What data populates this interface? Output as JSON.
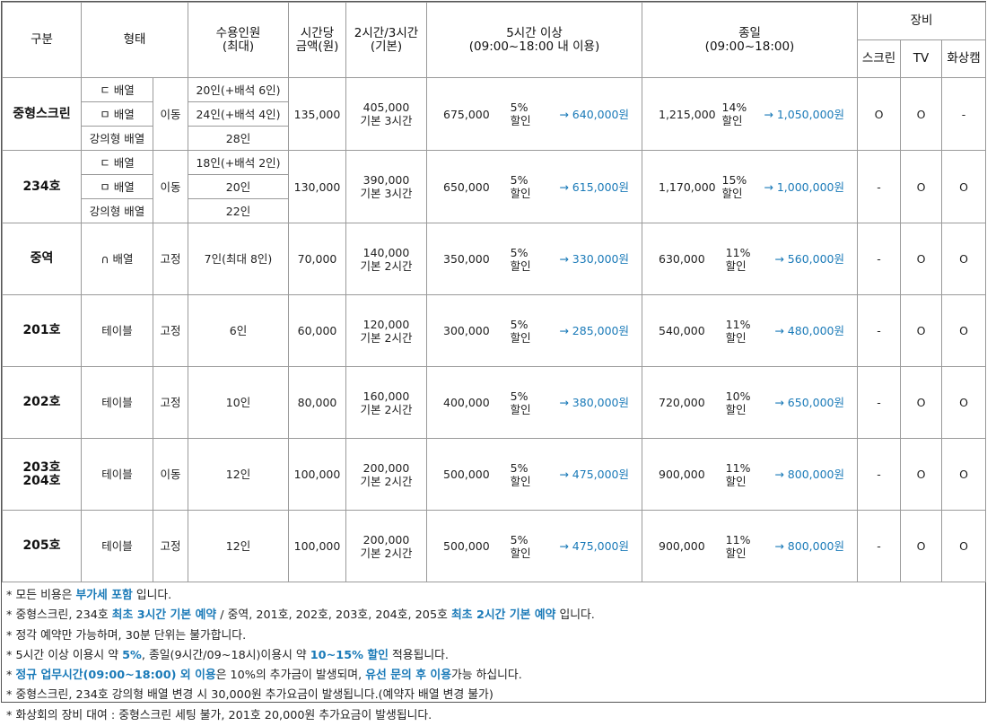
{
  "headers": {
    "category": "구분",
    "type": "형태",
    "capacity": "수용인원\n(최대)",
    "hourly": "시간당\n금액(원)",
    "base": "2시간/3시간\n(기본)",
    "five_hour": "5시간 이상\n(09:00~18:00 내 이용)",
    "full_day": "종일\n(09:00~18:00)",
    "equipment": "장비",
    "screen": "스크린",
    "tv": "TV",
    "camera": "화상캠"
  },
  "rooms": [
    {
      "name": "중형스크린",
      "mode": "이동",
      "layouts": [
        {
          "layout": "ㄷ 배열",
          "capacity": "20인(+배석 6인)"
        },
        {
          "layout": "ㅁ 배열",
          "capacity": "24인(+배석 4인)"
        },
        {
          "layout": "강의형 배열",
          "capacity": "28인"
        }
      ],
      "hourly": "135,000",
      "base": "405,000\n기본 3시간",
      "five_orig": "675,000",
      "five_rate": "5%\n할인",
      "five_final": "→ 640,000원",
      "day_orig": "1,215,000",
      "day_rate": "14%\n할인",
      "day_final": "→ 1,050,000원",
      "screen": "O",
      "tv": "O",
      "camera": "-"
    },
    {
      "name": "234호",
      "mode": "이동",
      "layouts": [
        {
          "layout": "ㄷ 배열",
          "capacity": "18인(+배석 2인)"
        },
        {
          "layout": "ㅁ 배열",
          "capacity": "20인"
        },
        {
          "layout": "강의형 배열",
          "capacity": "22인"
        }
      ],
      "hourly": "130,000",
      "base": "390,000\n기본 3시간",
      "five_orig": "650,000",
      "five_rate": "5%\n할인",
      "five_final": "→ 615,000원",
      "day_orig": "1,170,000",
      "day_rate": "15%\n할인",
      "day_final": "→ 1,000,000원",
      "screen": "-",
      "tv": "O",
      "camera": "O"
    }
  ],
  "simple_rooms": [
    {
      "name": "중역",
      "layout": "∩ 배열",
      "mode": "고정",
      "capacity": "7인(최대 8인)",
      "hourly": "70,000",
      "base": "140,000\n기본 2시간",
      "five_orig": "350,000",
      "five_rate": "5%\n할인",
      "five_final": "→ 330,000원",
      "day_orig": "630,000",
      "day_rate": "11%\n할인",
      "day_final": "→ 560,000원",
      "screen": "-",
      "tv": "O",
      "camera": "O"
    },
    {
      "name": "201호",
      "layout": "테이블",
      "mode": "고정",
      "capacity": "6인",
      "hourly": "60,000",
      "base": "120,000\n기본 2시간",
      "five_orig": "300,000",
      "five_rate": "5%\n할인",
      "five_final": "→ 285,000원",
      "day_orig": "540,000",
      "day_rate": "11%\n할인",
      "day_final": "→ 480,000원",
      "screen": "-",
      "tv": "O",
      "camera": "O"
    },
    {
      "name": "202호",
      "layout": "테이블",
      "mode": "고정",
      "capacity": "10인",
      "hourly": "80,000",
      "base": "160,000\n기본 2시간",
      "five_orig": "400,000",
      "five_rate": "5%\n할인",
      "five_final": "→ 380,000원",
      "day_orig": "720,000",
      "day_rate": "10%\n할인",
      "day_final": "→ 650,000원",
      "screen": "-",
      "tv": "O",
      "camera": "O"
    },
    {
      "name": "203호\n204호",
      "layout": "테이블",
      "mode": "이동",
      "capacity": "12인",
      "hourly": "100,000",
      "base": "200,000\n기본 2시간",
      "five_orig": "500,000",
      "five_rate": "5%\n할인",
      "five_final": "→ 475,000원",
      "day_orig": "900,000",
      "day_rate": "11%\n할인",
      "day_final": "→ 800,000원",
      "screen": "-",
      "tv": "O",
      "camera": "O"
    },
    {
      "name": "205호",
      "layout": "테이블",
      "mode": "고정",
      "capacity": "12인",
      "hourly": "100,000",
      "base": "200,000\n기본 2시간",
      "five_orig": "500,000",
      "five_rate": "5%\n할인",
      "five_final": "→ 475,000원",
      "day_orig": "900,000",
      "day_rate": "11%\n할인",
      "day_final": "→ 800,000원",
      "screen": "-",
      "tv": "O",
      "camera": "O"
    }
  ],
  "notes": {
    "n1_a": "* 모든 비용은 ",
    "n1_b": "부가세 포함",
    "n1_c": " 입니다.",
    "n2_a": "* 중형스크린, 234호 ",
    "n2_b": "최초 3시간 기본 예약",
    "n2_c": " / 중역, 201호, 202호, 203호, 204호, 205호 ",
    "n2_d": "최초 2시간 기본 예약",
    "n2_e": " 입니다.",
    "n3": "* 정각 예약만 가능하며, 30분 단위는 불가합니다.",
    "n4_a": "* 5시간 이상 이용시 약 ",
    "n4_b": "5%",
    "n4_c": ", 종일(9시간/09~18시)이용시 약 ",
    "n4_d": "10~15% 할인",
    "n4_e": " 적용됩니다.",
    "n5_a": "* ",
    "n5_b": "정규 업무시간(09:00~18:00) 외 이용",
    "n5_c": "은 10%의 추가금이 발생되며, ",
    "n5_d": "유선 문의 후 이용",
    "n5_e": "가능 하십니다.",
    "n6": "* 중형스크린, 234호 강의형 배열 변경 시 30,000원 추가요금이 발생됩니다.(예약자 배열 변경 불가)",
    "n7": "* 화상회의 장비 대여 : 중형스크린 세팅 불가, 201호 20,000원 추가요금이 발생됩니다."
  }
}
